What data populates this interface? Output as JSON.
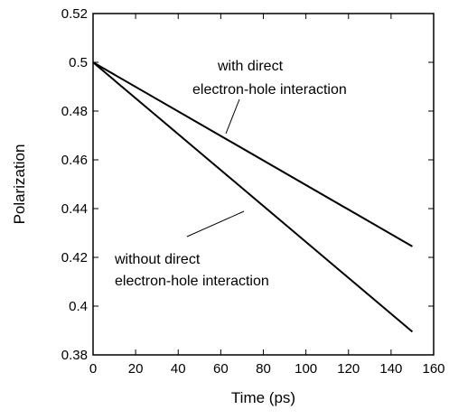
{
  "chart_data": {
    "type": "line",
    "xlabel": "Time (ps)",
    "ylabel": "Polarization",
    "xlim": [
      0,
      160
    ],
    "ylim": [
      0.38,
      0.52
    ],
    "xticks": [
      0,
      20,
      40,
      60,
      80,
      100,
      120,
      140,
      160
    ],
    "xtick_labels": [
      "0",
      "20",
      "40",
      "60",
      "80",
      "100",
      "120",
      "140",
      "160"
    ],
    "yticks": [
      0.38,
      0.4,
      0.42,
      0.44,
      0.46,
      0.48,
      0.5,
      0.52
    ],
    "ytick_labels": [
      "0.38",
      "0.4",
      "0.42",
      "0.44",
      "0.46",
      "0.48",
      "0.5",
      "0.52"
    ],
    "grid": false,
    "legend": "none",
    "series": [
      {
        "x": [
          0,
          150
        ],
        "y": [
          0.5,
          0.4245
        ]
      },
      {
        "x": [
          0,
          150
        ],
        "y": [
          0.5,
          0.3895
        ]
      }
    ],
    "annotations": [
      {
        "lines": [
          "with direct",
          "electron-hole interaction"
        ],
        "series_index": 0
      },
      {
        "lines": [
          "without direct",
          "electron-hole interaction"
        ],
        "series_index": 1
      }
    ]
  }
}
